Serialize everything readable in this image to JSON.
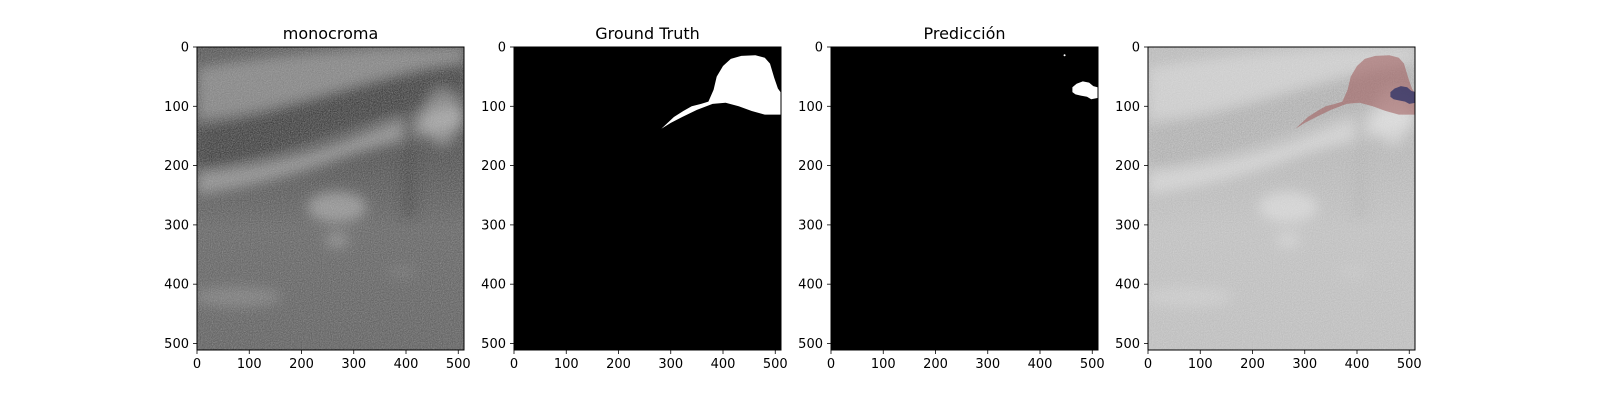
{
  "chart_data": [
    {
      "type": "image",
      "title": "monocroma",
      "xlim": [
        0,
        511
      ],
      "ylim": [
        511,
        0
      ],
      "xticks": [
        0,
        100,
        200,
        300,
        400,
        500
      ],
      "yticks": [
        0,
        100,
        200,
        300,
        400,
        500
      ],
      "colormap": "gray",
      "content": "ultrasound"
    },
    {
      "type": "image",
      "title": "Ground Truth",
      "xlim": [
        0,
        511
      ],
      "ylim": [
        511,
        0
      ],
      "xticks": [
        0,
        100,
        200,
        300,
        400,
        500
      ],
      "yticks": [
        0,
        100,
        200,
        300,
        400,
        500
      ],
      "colormap": "binary",
      "background": "#000000",
      "mask_color": "#ffffff",
      "mask_region": [
        [
          282,
          138
        ],
        [
          300,
          128
        ],
        [
          322,
          118
        ],
        [
          350,
          106
        ],
        [
          380,
          96
        ],
        [
          405,
          94
        ],
        [
          430,
          100
        ],
        [
          455,
          108
        ],
        [
          480,
          114
        ],
        [
          510,
          114
        ],
        [
          510,
          76
        ],
        [
          505,
          70
        ],
        [
          498,
          52
        ],
        [
          490,
          28
        ],
        [
          480,
          18
        ],
        [
          462,
          14
        ],
        [
          435,
          15
        ],
        [
          415,
          20
        ],
        [
          400,
          32
        ],
        [
          388,
          50
        ],
        [
          382,
          72
        ],
        [
          372,
          92
        ],
        [
          358,
          96
        ],
        [
          340,
          100
        ],
        [
          324,
          108
        ],
        [
          306,
          118
        ]
      ]
    },
    {
      "type": "image",
      "title": "Predicción",
      "xlim": [
        0,
        511
      ],
      "ylim": [
        511,
        0
      ],
      "xticks": [
        0,
        100,
        200,
        300,
        400,
        500
      ],
      "yticks": [
        0,
        100,
        200,
        300,
        400,
        500
      ],
      "colormap": "binary",
      "background": "#000000",
      "mask_color": "#ffffff",
      "mask_region": [
        [
          462,
          68
        ],
        [
          470,
          62
        ],
        [
          482,
          58
        ],
        [
          494,
          60
        ],
        [
          502,
          66
        ],
        [
          510,
          68
        ],
        [
          510,
          86
        ],
        [
          498,
          88
        ],
        [
          490,
          84
        ],
        [
          478,
          82
        ],
        [
          468,
          80
        ],
        [
          462,
          76
        ]
      ],
      "speck": [
        447,
        14
      ]
    },
    {
      "type": "image",
      "title": "",
      "xlim": [
        0,
        511
      ],
      "ylim": [
        511,
        0
      ],
      "xticks": [
        0,
        100,
        200,
        300,
        400,
        500
      ],
      "yticks": [
        0,
        100,
        200,
        300,
        400,
        500
      ],
      "content": "ultrasound overlay",
      "gt_overlay_color": "#a05a5a",
      "pred_overlay_color": "#3a3a6a"
    }
  ]
}
